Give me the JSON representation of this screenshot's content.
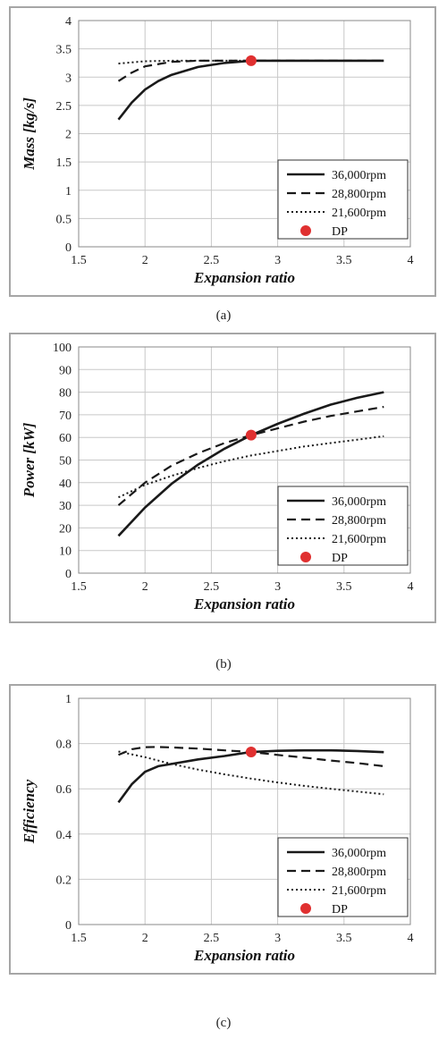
{
  "colors": {
    "line": "#1a1a1a",
    "dp": "#e03030",
    "grid": "#c8c8c8",
    "frame": "#a6a6a6"
  },
  "legend_labels": [
    "36,000rpm",
    "28,800rpm",
    "21,600rpm",
    "DP"
  ],
  "chart_data": [
    {
      "type": "line",
      "caption": "(a)",
      "xlabel": "Expansion ratio",
      "ylabel": "Mass [kg/s]",
      "xlim": [
        1.5,
        4
      ],
      "ylim": [
        0,
        4
      ],
      "xticks": [
        1.5,
        2,
        2.5,
        3,
        3.5,
        4
      ],
      "xtick_labels": [
        "1.5",
        "2",
        "2.5",
        "3",
        "3.5",
        "4"
      ],
      "yticks": [
        0,
        0.5,
        1,
        1.5,
        2,
        2.5,
        3,
        3.5,
        4
      ],
      "ytick_labels": [
        "0",
        "0.5",
        "1",
        "1.5",
        "2",
        "2.5",
        "3",
        "3.5",
        "4"
      ],
      "grid": true,
      "legend_position": "bottom-right",
      "series": [
        {
          "name": "36,000rpm",
          "style": "solid",
          "x": [
            1.8,
            1.9,
            2.0,
            2.1,
            2.2,
            2.4,
            2.6,
            2.8,
            3.0,
            3.4,
            3.8
          ],
          "y": [
            2.25,
            2.55,
            2.78,
            2.93,
            3.04,
            3.18,
            3.25,
            3.29,
            3.29,
            3.29,
            3.29
          ]
        },
        {
          "name": "28,800rpm",
          "style": "dashed",
          "x": [
            1.8,
            1.9,
            2.0,
            2.2,
            2.4,
            2.6,
            2.8,
            3.0,
            3.4,
            3.8
          ],
          "y": [
            2.93,
            3.08,
            3.19,
            3.27,
            3.29,
            3.29,
            3.29,
            3.29,
            3.29,
            3.29
          ]
        },
        {
          "name": "21,600rpm",
          "style": "dotted",
          "x": [
            1.8,
            2.0,
            2.2,
            2.4,
            2.6,
            2.8
          ],
          "y": [
            3.24,
            3.28,
            3.29,
            3.29,
            3.29,
            3.29
          ]
        }
      ],
      "points": [
        {
          "name": "DP",
          "x": 2.8,
          "y": 3.29
        }
      ]
    },
    {
      "type": "line",
      "caption": "(b)",
      "xlabel": "Expansion ratio",
      "ylabel": "Power [kW]",
      "xlim": [
        1.5,
        4
      ],
      "ylim": [
        0,
        100
      ],
      "xticks": [
        1.5,
        2,
        2.5,
        3,
        3.5,
        4
      ],
      "xtick_labels": [
        "1.5",
        "2",
        "2.5",
        "3",
        "3.5",
        "4"
      ],
      "yticks": [
        0,
        10,
        20,
        30,
        40,
        50,
        60,
        70,
        80,
        90,
        100
      ],
      "ytick_labels": [
        "0",
        "10",
        "20",
        "30",
        "40",
        "50",
        "60",
        "70",
        "80",
        "90",
        "100"
      ],
      "grid": true,
      "legend_position": "bottom-right",
      "series": [
        {
          "name": "36,000rpm",
          "style": "solid",
          "x": [
            1.8,
            2.0,
            2.2,
            2.4,
            2.6,
            2.8,
            3.0,
            3.2,
            3.4,
            3.6,
            3.8
          ],
          "y": [
            16.5,
            29,
            39.5,
            48,
            55,
            61,
            66,
            70.5,
            74.5,
            77.5,
            80
          ]
        },
        {
          "name": "28,800rpm",
          "style": "dashed",
          "x": [
            1.8,
            2.0,
            2.2,
            2.4,
            2.6,
            2.8,
            3.0,
            3.2,
            3.4,
            3.6,
            3.8
          ],
          "y": [
            30,
            40,
            47.5,
            53,
            57.5,
            61,
            64,
            67,
            69.5,
            71.5,
            73.5
          ]
        },
        {
          "name": "21,600rpm",
          "style": "dotted",
          "x": [
            1.8,
            2.0,
            2.2,
            2.4,
            2.6,
            2.8,
            3.0,
            3.2,
            3.4,
            3.6,
            3.8
          ],
          "y": [
            33.5,
            39,
            43,
            46.5,
            49.5,
            52,
            54,
            56,
            57.5,
            59,
            60.5
          ]
        }
      ],
      "points": [
        {
          "name": "DP",
          "x": 2.8,
          "y": 61
        }
      ]
    },
    {
      "type": "line",
      "caption": "(c)",
      "xlabel": "Expansion ratio",
      "ylabel": "Efficiency",
      "xlim": [
        1.5,
        4
      ],
      "ylim": [
        0,
        1
      ],
      "xticks": [
        1.5,
        2,
        2.5,
        3,
        3.5,
        4
      ],
      "xtick_labels": [
        "1.5",
        "2",
        "2.5",
        "3",
        "3.5",
        "4"
      ],
      "yticks": [
        0,
        0.2,
        0.4,
        0.6,
        0.8,
        1
      ],
      "ytick_labels": [
        "0",
        "0.2",
        "0.4",
        "0.6",
        "0.8",
        "1"
      ],
      "grid": true,
      "legend_position": "bottom-right",
      "series": [
        {
          "name": "36,000rpm",
          "style": "solid",
          "x": [
            1.8,
            1.9,
            2.0,
            2.1,
            2.2,
            2.4,
            2.6,
            2.8,
            3.0,
            3.2,
            3.4,
            3.6,
            3.8
          ],
          "y": [
            0.54,
            0.62,
            0.675,
            0.7,
            0.71,
            0.73,
            0.745,
            0.763,
            0.768,
            0.77,
            0.77,
            0.767,
            0.762
          ]
        },
        {
          "name": "28,800rpm",
          "style": "dashed",
          "x": [
            1.8,
            1.9,
            2.0,
            2.1,
            2.2,
            2.4,
            2.6,
            2.8,
            3.0,
            3.2,
            3.4,
            3.6,
            3.8
          ],
          "y": [
            0.75,
            0.775,
            0.784,
            0.785,
            0.783,
            0.778,
            0.77,
            0.763,
            0.75,
            0.738,
            0.725,
            0.714,
            0.7
          ]
        },
        {
          "name": "21,600rpm",
          "style": "dotted",
          "x": [
            1.8,
            2.0,
            2.2,
            2.4,
            2.6,
            2.8,
            3.0,
            3.2,
            3.4,
            3.6,
            3.8
          ],
          "y": [
            0.765,
            0.74,
            0.71,
            0.685,
            0.664,
            0.645,
            0.628,
            0.613,
            0.6,
            0.588,
            0.576
          ]
        }
      ],
      "points": [
        {
          "name": "DP",
          "x": 2.8,
          "y": 0.763
        }
      ]
    }
  ]
}
